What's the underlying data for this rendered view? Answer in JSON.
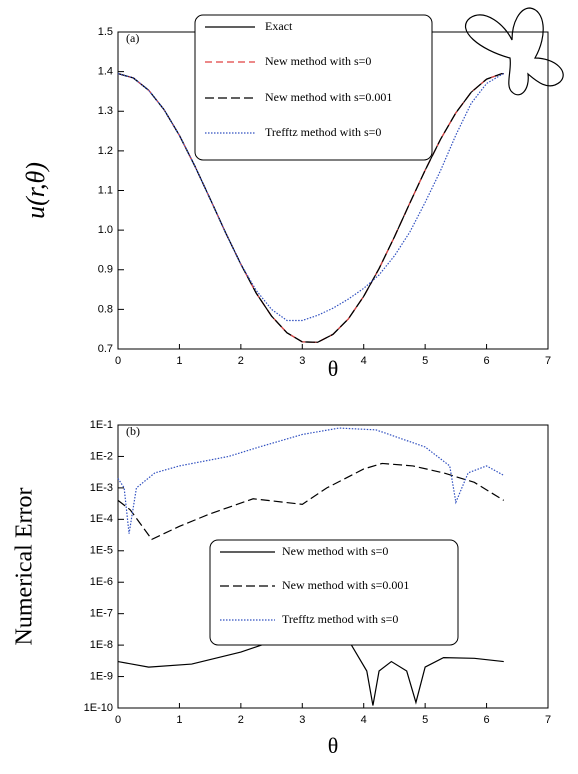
{
  "chart_data": [
    {
      "type": "line",
      "panel_label": "(a)",
      "xlabel": "θ",
      "ylabel": "u(r,θ)",
      "xlim": [
        0,
        7
      ],
      "xticks": [
        0,
        1,
        2,
        3,
        4,
        5,
        6,
        7
      ],
      "ylim": [
        0.7,
        1.5
      ],
      "yticks": [
        0.7,
        0.8,
        0.9,
        {
          "value": 1,
          "label": "1.0"
        },
        1.1,
        1.2,
        1.3,
        1.4,
        1.5
      ],
      "log_y": false,
      "legend": "top-center",
      "series": [
        {
          "name": "Exact",
          "color": "#000000",
          "line_style": "solid",
          "x": [
            0,
            0.25,
            0.5,
            0.75,
            1,
            1.25,
            1.5,
            1.75,
            2,
            2.25,
            2.5,
            2.75,
            3,
            3.25,
            3.5,
            3.75,
            4,
            4.25,
            4.5,
            4.75,
            5,
            5.25,
            5.5,
            5.75,
            6,
            6.25,
            6.28
          ],
          "values": [
            1.395,
            1.384,
            1.353,
            1.304,
            1.239,
            1.162,
            1.079,
            0.994,
            0.914,
            0.841,
            0.783,
            0.741,
            0.718,
            0.717,
            0.737,
            0.776,
            0.833,
            0.903,
            0.983,
            1.068,
            1.151,
            1.229,
            1.296,
            1.348,
            1.381,
            1.395,
            1.395
          ]
        },
        {
          "name": "New method with s=0",
          "color": "#e04040",
          "line_style": "dashed",
          "x": [
            0,
            0.25,
            0.5,
            0.75,
            1,
            1.25,
            1.5,
            1.75,
            2,
            2.25,
            2.5,
            2.75,
            3,
            3.25,
            3.5,
            3.75,
            4,
            4.25,
            4.5,
            4.75,
            5,
            5.25,
            5.5,
            5.75,
            6,
            6.25,
            6.28
          ],
          "values": [
            1.395,
            1.384,
            1.353,
            1.304,
            1.239,
            1.162,
            1.079,
            0.994,
            0.914,
            0.841,
            0.783,
            0.741,
            0.718,
            0.717,
            0.737,
            0.776,
            0.833,
            0.903,
            0.983,
            1.068,
            1.151,
            1.229,
            1.296,
            1.348,
            1.381,
            1.395,
            1.395
          ]
        },
        {
          "name": "New method with s=0.001",
          "color": "#000000",
          "line_style": "longdash",
          "x": [
            0,
            0.25,
            0.5,
            0.75,
            1,
            1.25,
            1.5,
            1.75,
            2,
            2.25,
            2.5,
            2.75,
            3,
            3.25,
            3.5,
            3.75,
            4,
            4.25,
            4.5,
            4.75,
            5,
            5.25,
            5.5,
            5.75,
            6,
            6.25,
            6.28
          ],
          "values": [
            1.395,
            1.384,
            1.353,
            1.304,
            1.239,
            1.162,
            1.079,
            0.994,
            0.914,
            0.841,
            0.783,
            0.741,
            0.718,
            0.717,
            0.737,
            0.776,
            0.833,
            0.903,
            0.983,
            1.068,
            1.151,
            1.229,
            1.296,
            1.348,
            1.381,
            1.395,
            1.395
          ]
        },
        {
          "name": "Trefftz method with s=0",
          "color": "#3050c0",
          "line_style": "dotted",
          "x": [
            0,
            0.25,
            0.5,
            0.75,
            1,
            1.25,
            1.5,
            1.75,
            2,
            2.25,
            2.5,
            2.75,
            3,
            3.25,
            3.5,
            3.75,
            4,
            4.25,
            4.5,
            4.75,
            5,
            5.25,
            5.5,
            5.75,
            6,
            6.25,
            6.28
          ],
          "values": [
            1.395,
            1.384,
            1.353,
            1.304,
            1.239,
            1.162,
            1.079,
            0.994,
            0.914,
            0.848,
            0.8,
            0.772,
            0.772,
            0.785,
            0.803,
            0.826,
            0.853,
            0.887,
            0.935,
            0.995,
            1.07,
            1.15,
            1.24,
            1.32,
            1.37,
            1.393,
            1.395
          ]
        }
      ]
    },
    {
      "type": "line",
      "panel_label": "(b)",
      "xlabel": "θ",
      "ylabel": "Numerical Error",
      "xlim": [
        0,
        7
      ],
      "xticks": [
        0,
        1,
        2,
        3,
        4,
        5,
        6,
        7
      ],
      "ylim": [
        1e-10,
        0.1
      ],
      "yticks": [
        {
          "value": 1e-10,
          "label": "1E-10"
        },
        {
          "value": 1e-09,
          "label": "1E-9"
        },
        {
          "value": 1e-08,
          "label": "1E-8"
        },
        {
          "value": 1e-07,
          "label": "1E-7"
        },
        {
          "value": 1e-06,
          "label": "1E-6"
        },
        {
          "value": 1e-05,
          "label": "1E-5"
        },
        {
          "value": 0.0001,
          "label": "1E-4"
        },
        {
          "value": 0.001,
          "label": "1E-3"
        },
        {
          "value": 0.01,
          "label": "1E-2"
        },
        {
          "value": 0.1,
          "label": "1E-1"
        }
      ],
      "log_y": true,
      "legend": "center",
      "series": [
        {
          "name": "New method with s=0",
          "color": "#000000",
          "line_style": "solid",
          "x": [
            0,
            0.5,
            1.2,
            2,
            2.6,
            3,
            3.3,
            3.8,
            4.05,
            4.15,
            4.25,
            4.45,
            4.7,
            4.85,
            5.0,
            5.3,
            5.8,
            6.28
          ],
          "values": [
            3e-09,
            2e-09,
            2.5e-09,
            6e-09,
            1.5e-08,
            2.5e-08,
            2.5e-08,
            1e-08,
            1.5e-09,
            1.2e-10,
            1.5e-09,
            3e-09,
            1.5e-09,
            1.5e-10,
            2e-09,
            4e-09,
            3.8e-09,
            3e-09
          ]
        },
        {
          "name": "New method with s=0.001",
          "color": "#000000",
          "line_style": "longdash",
          "x": [
            0,
            0.2,
            0.55,
            1,
            1.5,
            2.2,
            2.7,
            3,
            3.4,
            4,
            4.3,
            4.8,
            5.3,
            5.8,
            6.28
          ],
          "values": [
            0.0004,
            0.0002,
            2.3e-05,
            6e-05,
            0.00015,
            0.00045,
            0.00035,
            0.0003,
            0.001,
            0.004,
            0.006,
            0.005,
            0.003,
            0.0015,
            0.0004
          ]
        },
        {
          "name": "Trefftz method with s=0",
          "color": "#3050c0",
          "line_style": "dotted",
          "x": [
            0,
            0.1,
            0.18,
            0.3,
            0.6,
            1,
            1.8,
            2.3,
            3,
            3.6,
            4.2,
            5,
            5.4,
            5.5,
            5.7,
            6,
            6.28
          ],
          "values": [
            0.002,
            0.001,
            3.5e-05,
            0.001,
            0.003,
            0.005,
            0.01,
            0.02,
            0.05,
            0.08,
            0.07,
            0.02,
            0.005,
            0.00035,
            0.003,
            0.005,
            0.0025
          ]
        }
      ]
    }
  ]
}
